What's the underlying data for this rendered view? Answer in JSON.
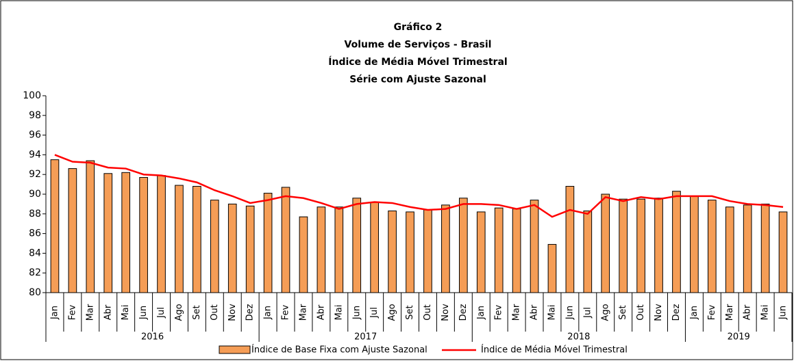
{
  "chart_data": {
    "type": "bar_line",
    "title": [
      "Gráfico 2",
      "Volume de Serviços - Brasil",
      "Índice de Média Móvel Trimestral",
      "Série com Ajuste Sazonal"
    ],
    "categories": [
      "Jan",
      "Fev",
      "Mar",
      "Abr",
      "Mai",
      "Jun",
      "Jul",
      "Ago",
      "Set",
      "Out",
      "Nov",
      "Dez",
      "Jan",
      "Fev",
      "Mar",
      "Abr",
      "Mai",
      "Jun",
      "Jul",
      "Ago",
      "Set",
      "Out",
      "Nov",
      "Dez",
      "Jan",
      "Fev",
      "Mar",
      "Abr",
      "Mai",
      "Jun",
      "Jul",
      "Ago",
      "Set",
      "Out",
      "Nov",
      "Dez",
      "Jan",
      "Fev",
      "Mar",
      "Abr",
      "Mai",
      "Jun"
    ],
    "years": [
      "2016",
      "2017",
      "2018",
      "2019"
    ],
    "series": [
      {
        "name": "Índice de Base Fixa com Ajuste Sazonal",
        "type": "bar",
        "color": "#f59d56",
        "values": [
          93.5,
          92.6,
          93.4,
          92.1,
          92.2,
          91.7,
          91.9,
          90.9,
          90.8,
          89.4,
          89.0,
          88.8,
          90.1,
          90.7,
          87.7,
          88.7,
          88.7,
          89.6,
          89.2,
          88.3,
          88.2,
          88.4,
          88.9,
          89.6,
          88.2,
          88.6,
          88.5,
          89.4,
          84.9,
          90.8,
          88.3,
          90.0,
          89.5,
          89.5,
          89.6,
          90.3,
          89.8,
          89.4,
          88.7,
          88.9,
          89.0,
          88.2
        ]
      },
      {
        "name": "Índice de Média Móvel Trimestral",
        "type": "line",
        "color": "#ff0000",
        "values": [
          94.0,
          93.3,
          93.2,
          92.7,
          92.6,
          92.0,
          91.9,
          91.6,
          91.2,
          90.4,
          89.8,
          89.1,
          89.4,
          89.8,
          89.6,
          89.1,
          88.5,
          89.0,
          89.2,
          89.1,
          88.7,
          88.4,
          88.5,
          89.0,
          89.0,
          88.9,
          88.5,
          88.9,
          87.7,
          88.4,
          88.0,
          89.7,
          89.3,
          89.7,
          89.5,
          89.8,
          89.8,
          89.8,
          89.3,
          89.0,
          88.9,
          88.7
        ]
      }
    ],
    "ylim": [
      80,
      100
    ],
    "yticks": [
      80,
      82,
      84,
      86,
      88,
      90,
      92,
      94,
      96,
      98,
      100
    ]
  }
}
